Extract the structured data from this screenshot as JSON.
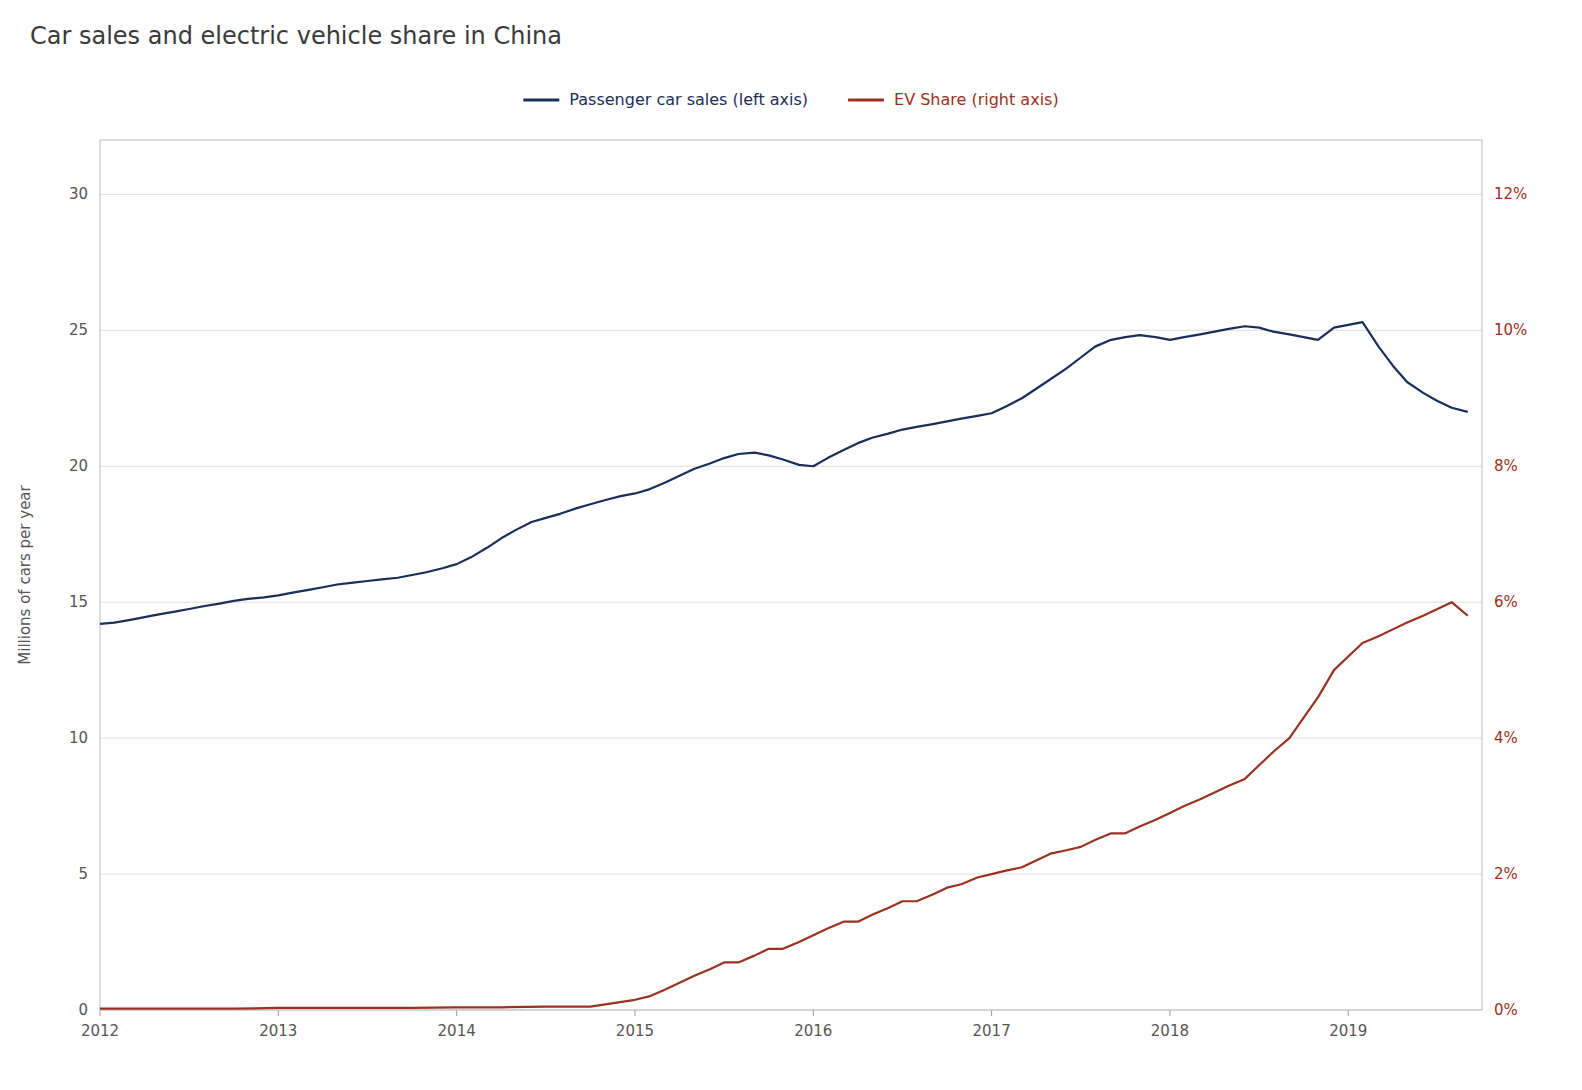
{
  "chart_data": {
    "type": "line",
    "title": "Car sales and electric vehicle share in China",
    "ylabel": "Millions of cars per year",
    "xlim": [
      2012,
      2019.75
    ],
    "xticks": [
      2012,
      2013,
      2014,
      2015,
      2016,
      2017,
      2018,
      2019
    ],
    "ylim": [
      0,
      32
    ],
    "yticks": [
      0,
      5,
      10,
      15,
      20,
      25,
      30
    ],
    "y2lim": [
      0,
      0.128
    ],
    "y2ticks": [
      {
        "value": 0.0,
        "label": "0%"
      },
      {
        "value": 0.02,
        "label": "2%"
      },
      {
        "value": 0.04,
        "label": "4%"
      },
      {
        "value": 0.06,
        "label": "6%"
      },
      {
        "value": 0.08,
        "label": "8%"
      },
      {
        "value": 0.1,
        "label": "10%"
      },
      {
        "value": 0.12,
        "label": "12%"
      }
    ],
    "grid": true,
    "legend": "top",
    "series": [
      {
        "name": "Passenger car sales (left axis)",
        "color": "#1a2e5a",
        "x": [
          2012.0,
          2012.08,
          2012.17,
          2012.25,
          2012.33,
          2012.42,
          2012.5,
          2012.58,
          2012.67,
          2012.75,
          2012.83,
          2012.92,
          2013.0,
          2013.08,
          2013.17,
          2013.25,
          2013.33,
          2013.42,
          2013.5,
          2013.58,
          2013.67,
          2013.75,
          2013.83,
          2013.92,
          2014.0,
          2014.08,
          2014.17,
          2014.25,
          2014.33,
          2014.42,
          2014.5,
          2014.58,
          2014.67,
          2014.75,
          2014.83,
          2014.92,
          2015.0,
          2015.08,
          2015.17,
          2015.25,
          2015.33,
          2015.42,
          2015.5,
          2015.58,
          2015.67,
          2015.75,
          2015.83,
          2015.92,
          2016.0,
          2016.08,
          2016.17,
          2016.25,
          2016.33,
          2016.42,
          2016.5,
          2016.58,
          2016.67,
          2016.75,
          2016.83,
          2016.92,
          2017.0,
          2017.08,
          2017.17,
          2017.25,
          2017.33,
          2017.42,
          2017.5,
          2017.58,
          2017.67,
          2017.75,
          2017.83,
          2017.92,
          2018.0,
          2018.08,
          2018.17,
          2018.25,
          2018.33,
          2018.42,
          2018.5,
          2018.58,
          2018.67,
          2018.75,
          2018.83,
          2018.92,
          2019.0,
          2019.08,
          2019.17,
          2019.25,
          2019.33,
          2019.42,
          2019.5,
          2019.58,
          2019.67
        ],
        "values": [
          14.2,
          14.25,
          14.35,
          14.45,
          14.55,
          14.65,
          14.75,
          14.85,
          14.95,
          15.05,
          15.12,
          15.18,
          15.25,
          15.35,
          15.45,
          15.55,
          15.65,
          15.72,
          15.78,
          15.84,
          15.9,
          16.0,
          16.1,
          16.25,
          16.4,
          16.65,
          17.0,
          17.35,
          17.65,
          17.95,
          18.1,
          18.25,
          18.45,
          18.6,
          18.75,
          18.9,
          19.0,
          19.15,
          19.4,
          19.65,
          19.9,
          20.1,
          20.3,
          20.45,
          20.5,
          20.4,
          20.25,
          20.05,
          20.0,
          20.3,
          20.6,
          20.85,
          21.05,
          21.2,
          21.35,
          21.45,
          21.55,
          21.65,
          21.75,
          21.85,
          21.95,
          22.2,
          22.5,
          22.85,
          23.2,
          23.6,
          24.0,
          24.4,
          24.65,
          24.75,
          24.82,
          24.75,
          24.65,
          24.75,
          24.85,
          24.95,
          25.05,
          25.15,
          25.1,
          24.95,
          24.85,
          24.75,
          24.65,
          25.1,
          25.2,
          25.3,
          24.4,
          23.7,
          23.1,
          22.7,
          22.4,
          22.15,
          22.0
        ]
      },
      {
        "name": "EV Share (right axis)",
        "color": "#9b3120",
        "axis": "y2",
        "x": [
          2012.0,
          2012.25,
          2012.5,
          2012.75,
          2013.0,
          2013.25,
          2013.5,
          2013.75,
          2014.0,
          2014.25,
          2014.5,
          2014.75,
          2015.0,
          2015.08,
          2015.17,
          2015.25,
          2015.33,
          2015.42,
          2015.5,
          2015.58,
          2015.67,
          2015.75,
          2015.83,
          2015.92,
          2016.0,
          2016.08,
          2016.17,
          2016.25,
          2016.33,
          2016.42,
          2016.5,
          2016.58,
          2016.67,
          2016.75,
          2016.83,
          2016.92,
          2017.0,
          2017.08,
          2017.17,
          2017.25,
          2017.33,
          2017.42,
          2017.5,
          2017.58,
          2017.67,
          2017.75,
          2017.83,
          2017.92,
          2018.0,
          2018.08,
          2018.17,
          2018.25,
          2018.33,
          2018.42,
          2018.5,
          2018.58,
          2018.67,
          2018.75,
          2018.83,
          2018.92,
          2019.0,
          2019.08,
          2019.17,
          2019.25,
          2019.33,
          2019.42,
          2019.5,
          2019.58,
          2019.67
        ],
        "values": [
          0.0002,
          0.0002,
          0.0002,
          0.0002,
          0.0003,
          0.0003,
          0.0003,
          0.0003,
          0.0004,
          0.0004,
          0.0005,
          0.0005,
          0.0015,
          0.002,
          0.003,
          0.004,
          0.005,
          0.006,
          0.007,
          0.007,
          0.008,
          0.009,
          0.009,
          0.01,
          0.011,
          0.012,
          0.013,
          0.013,
          0.014,
          0.015,
          0.016,
          0.016,
          0.017,
          0.018,
          0.0185,
          0.0195,
          0.02,
          0.0205,
          0.021,
          0.022,
          0.023,
          0.0235,
          0.024,
          0.025,
          0.026,
          0.026,
          0.027,
          0.028,
          0.029,
          0.03,
          0.031,
          0.032,
          0.033,
          0.034,
          0.036,
          0.038,
          0.04,
          0.043,
          0.046,
          0.05,
          0.052,
          0.054,
          0.055,
          0.056,
          0.057,
          0.058,
          0.059,
          0.06,
          0.058
        ]
      }
    ]
  }
}
